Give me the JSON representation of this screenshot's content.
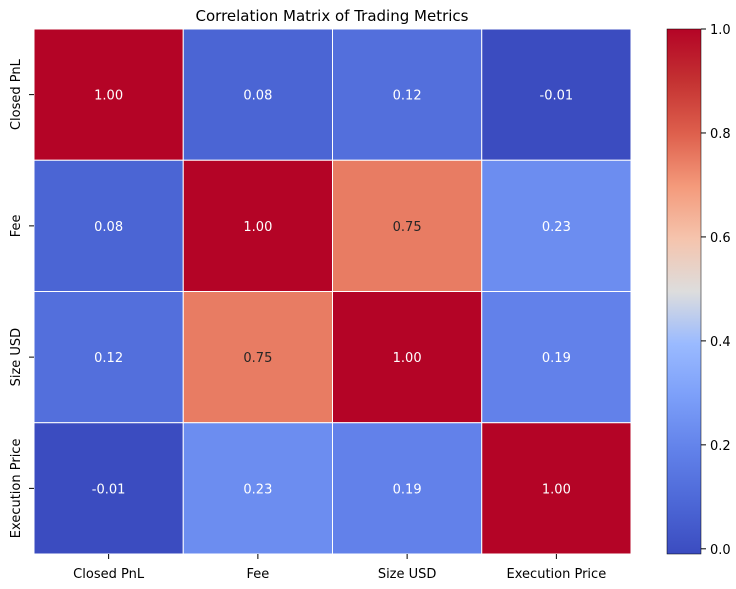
{
  "chart_data": {
    "type": "heatmap",
    "title": "Correlation Matrix of Trading Metrics",
    "x_categories": [
      "Closed PnL",
      "Fee",
      "Size USD",
      "Execution Price"
    ],
    "y_categories": [
      "Closed PnL",
      "Fee",
      "Size USD",
      "Execution Price"
    ],
    "values": [
      [
        1.0,
        0.08,
        0.12,
        -0.01
      ],
      [
        0.08,
        1.0,
        0.75,
        0.23
      ],
      [
        0.12,
        0.75,
        1.0,
        0.19
      ],
      [
        -0.01,
        0.23,
        0.19,
        1.0
      ]
    ],
    "annotation_labels": [
      [
        "1.00",
        "0.08",
        "0.12",
        "-0.01"
      ],
      [
        "0.08",
        "1.00",
        "0.75",
        "0.23"
      ],
      [
        "0.12",
        "0.75",
        "1.00",
        "0.19"
      ],
      [
        "-0.01",
        "0.23",
        "0.19",
        "1.00"
      ]
    ],
    "colorbar": {
      "min": -0.01,
      "max": 1.0,
      "ticks": [
        "0.0",
        "0.2",
        "0.4",
        "0.6",
        "0.8",
        "1.0"
      ],
      "colormap": "coolwarm"
    },
    "grid": true,
    "grid_color": "#ffffff"
  }
}
